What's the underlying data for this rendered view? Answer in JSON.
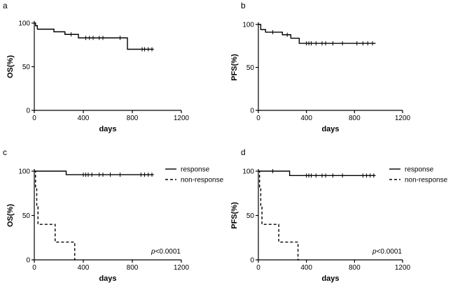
{
  "chart_data": [
    {
      "type": "line",
      "step": true,
      "panel_label": "a",
      "xlabel": "days",
      "ylabel": "OS(%)",
      "xlim": [
        0,
        1200
      ],
      "ylim": [
        0,
        100
      ],
      "xticks": [
        "0",
        "400",
        "800",
        "1200"
      ],
      "yticks": [
        "0",
        "50",
        "100"
      ],
      "series": [
        {
          "style": "solid",
          "x": [
            0,
            10,
            25,
            160,
            250,
            360,
            760,
            975
          ],
          "y": [
            100,
            97,
            93,
            90,
            87,
            83,
            70,
            70
          ],
          "censor_x": [
            300,
            420,
            450,
            480,
            530,
            560,
            700,
            880,
            900,
            930,
            960
          ]
        }
      ],
      "legend": [],
      "annotation": ""
    },
    {
      "type": "line",
      "step": true,
      "panel_label": "b",
      "xlabel": "days",
      "ylabel": "PFS(%)",
      "xlim": [
        0,
        1200
      ],
      "ylim": [
        0,
        100
      ],
      "xticks": [
        "0",
        "400",
        "800",
        "1200"
      ],
      "yticks": [
        "0",
        "50",
        "100"
      ],
      "series": [
        {
          "style": "solid",
          "x": [
            0,
            20,
            60,
            200,
            270,
            340,
            975
          ],
          "y": [
            100,
            94,
            91,
            88,
            84,
            78,
            78
          ],
          "censor_x": [
            120,
            240,
            400,
            420,
            440,
            480,
            530,
            560,
            620,
            700,
            820,
            870,
            910,
            950
          ]
        }
      ],
      "legend": [],
      "annotation": ""
    },
    {
      "type": "line",
      "step": true,
      "panel_label": "c",
      "xlabel": "days",
      "ylabel": "OS(%)",
      "xlim": [
        0,
        1200
      ],
      "ylim": [
        0,
        100
      ],
      "xticks": [
        "0",
        "400",
        "800",
        "1200"
      ],
      "yticks": [
        "0",
        "50",
        "100"
      ],
      "series": [
        {
          "name": "response",
          "style": "solid",
          "x": [
            0,
            260,
            975
          ],
          "y": [
            100,
            96,
            96
          ],
          "censor_x": [
            400,
            420,
            440,
            470,
            530,
            560,
            620,
            700,
            870,
            900,
            930,
            960
          ]
        },
        {
          "name": "non-response",
          "style": "dashed",
          "x": [
            0,
            10,
            20,
            30,
            170,
            330,
            340
          ],
          "y": [
            100,
            80,
            60,
            40,
            20,
            0,
            0
          ],
          "censor_x": []
        }
      ],
      "legend": [
        "response",
        "non-response"
      ],
      "annotation": "p<0.0001"
    },
    {
      "type": "line",
      "step": true,
      "panel_label": "d",
      "xlabel": "days",
      "ylabel": "PFS(%)",
      "xlim": [
        0,
        1200
      ],
      "ylim": [
        0,
        100
      ],
      "xticks": [
        "0",
        "400",
        "800",
        "1200"
      ],
      "yticks": [
        "0",
        "50",
        "100"
      ],
      "series": [
        {
          "name": "response",
          "style": "solid",
          "x": [
            0,
            260,
            975
          ],
          "y": [
            100,
            95,
            95
          ],
          "censor_x": [
            120,
            400,
            420,
            440,
            480,
            530,
            560,
            620,
            700,
            870,
            900,
            930,
            960
          ]
        },
        {
          "name": "non-response",
          "style": "dashed",
          "x": [
            0,
            10,
            20,
            30,
            170,
            330,
            340
          ],
          "y": [
            100,
            80,
            60,
            40,
            20,
            0,
            0
          ],
          "censor_x": []
        }
      ],
      "legend": [
        "response",
        "non-response"
      ],
      "annotation": "p<0.0001"
    }
  ]
}
